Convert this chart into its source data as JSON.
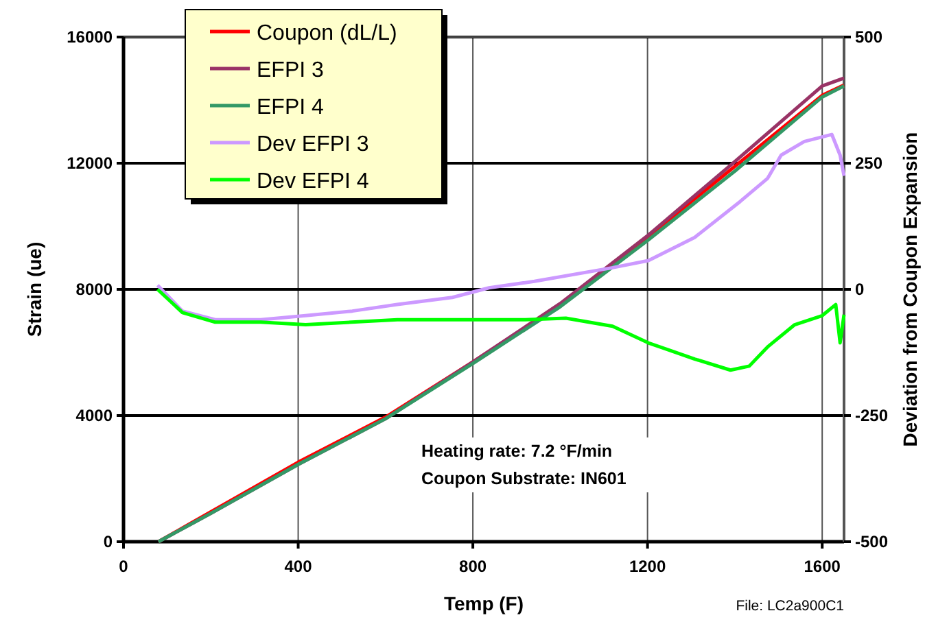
{
  "chart_data": {
    "type": "line",
    "xlabel": "Temp (F)",
    "ylabel": "Strain (ue)",
    "y2label": "Deviation from Coupon Expansion",
    "xlim": [
      0,
      1650
    ],
    "xticks": [
      0,
      400,
      800,
      1200,
      1600
    ],
    "ylim": [
      0,
      16000
    ],
    "yticks": [
      0,
      4000,
      8000,
      12000,
      16000
    ],
    "y2lim": [
      -500,
      500
    ],
    "y2ticks": [
      -500,
      -250,
      0,
      250,
      500
    ],
    "grid": true,
    "legend": "top left",
    "line_style": "solid",
    "marker": "none",
    "annotations": [
      "Heating rate: 7.2 °F/min",
      "Coupon Substrate: IN601",
      "File: LC2a900C1"
    ],
    "series": [
      {
        "name": "Coupon (dL/L)",
        "color": "#ff0000",
        "x": [
          80,
          200,
          400,
          600,
          800,
          1000,
          1200,
          1400,
          1600,
          1650
        ],
        "values": [
          0,
          950,
          2520,
          3950,
          5700,
          7500,
          9650,
          11900,
          14150,
          14480
        ]
      },
      {
        "name": "EFPI 3",
        "color": "#993366",
        "x": [
          80,
          200,
          400,
          600,
          800,
          1000,
          1200,
          1400,
          1600,
          1650
        ],
        "values": [
          0,
          900,
          2450,
          3900,
          5700,
          7550,
          9700,
          12050,
          14450,
          14700
        ]
      },
      {
        "name": "EFPI 4",
        "color": "#339966",
        "x": [
          80,
          200,
          400,
          600,
          800,
          1000,
          1200,
          1400,
          1600,
          1650
        ],
        "values": [
          0,
          900,
          2450,
          3900,
          5650,
          7450,
          9550,
          11750,
          14100,
          14450
        ]
      },
      {
        "name": "Dev EFPI 3",
        "color": "#cc99ff",
        "axis": "y2",
        "x": [
          78,
          135,
          210,
          314,
          417,
          524,
          627,
          753,
          837,
          941,
          1120,
          1202,
          1308,
          1412,
          1475,
          1506,
          1559,
          1622,
          1641,
          1650
        ],
        "values": [
          8,
          -43,
          -60,
          -60,
          -52,
          -43,
          -30,
          -16,
          3,
          16,
          43,
          57,
          103,
          174,
          220,
          266,
          293,
          307,
          266,
          225
        ]
      },
      {
        "name": "Dev EFPI 4",
        "color": "#00ff00",
        "axis": "y2",
        "x": [
          78,
          135,
          210,
          314,
          417,
          627,
          837,
          920,
          1013,
          1120,
          1202,
          1308,
          1390,
          1433,
          1475,
          1537,
          1600,
          1631,
          1641,
          1650
        ],
        "values": [
          0,
          -46,
          -65,
          -65,
          -70,
          -60,
          -60,
          -60,
          -57,
          -73,
          -106,
          -138,
          -160,
          -152,
          -114,
          -70,
          -52,
          -30,
          -106,
          -50
        ]
      }
    ]
  }
}
